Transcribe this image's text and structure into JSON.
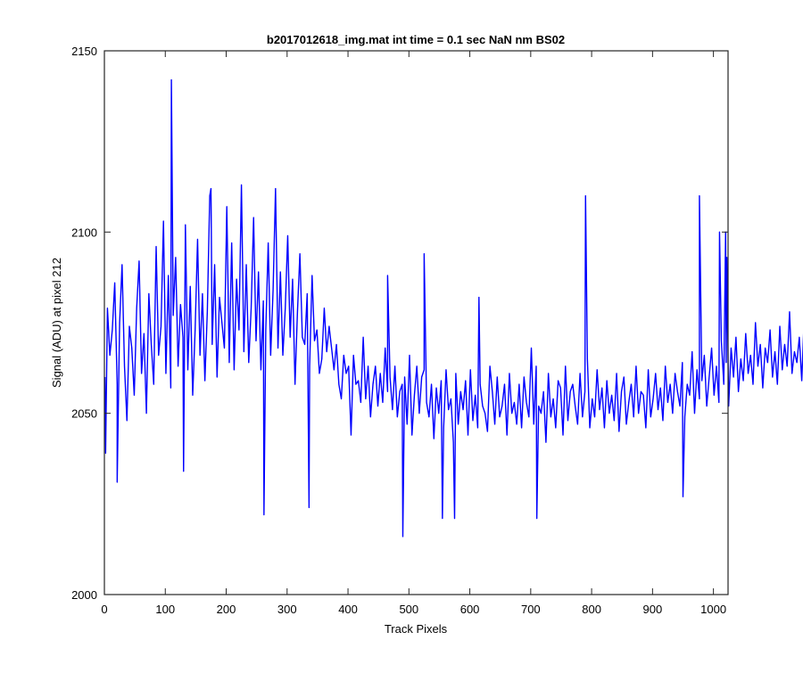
{
  "chart_data": {
    "type": "line",
    "title": "b2017012618_img.mat int time = 0.1 sec  NaN nm BS02",
    "xlabel": "Track Pixels",
    "ylabel": "Signal (ADU) at pixel 212",
    "xlim": [
      0,
      1024
    ],
    "ylim": [
      2000,
      2150
    ],
    "xticks": [
      0,
      100,
      200,
      300,
      400,
      500,
      600,
      700,
      800,
      900,
      1000
    ],
    "yticks": [
      2000,
      2050,
      2100,
      2150
    ],
    "xtick_labels": [
      "0",
      "100",
      "200",
      "300",
      "400",
      "500",
      "600",
      "700",
      "800",
      "900",
      "1000"
    ],
    "ytick_labels": [
      "2000",
      "2050",
      "2100",
      "2150"
    ],
    "grid": false,
    "box": true,
    "series_color": "#0000ff",
    "series": [
      {
        "x_start": 1,
        "x_step": 4,
        "values": [
          2060,
          2079,
          2066,
          2073,
          2086,
          2058,
          2075,
          2091,
          2063,
          2048,
          2074,
          2068,
          2055,
          2079,
          2092,
          2061,
          2072,
          2050,
          2083,
          2069,
          2058,
          2096,
          2066,
          2074,
          2103,
          2061,
          2088,
          2057,
          2077,
          2093,
          2063,
          2080,
          2071,
          2102,
          2062,
          2085,
          2055,
          2073,
          2098,
          2066,
          2083,
          2059,
          2078,
          2110,
          2069,
          2091,
          2060,
          2082,
          2075,
          2068,
          2107,
          2064,
          2097,
          2062,
          2087,
          2073,
          2113,
          2067,
          2091,
          2064,
          2079,
          2104,
          2070,
          2089,
          2062,
          2081,
          2073,
          2097,
          2066,
          2084,
          2112,
          2068,
          2089,
          2066,
          2079,
          2099,
          2071,
          2087,
          2058,
          2078,
          2094,
          2071,
          2069,
          2083,
          2063,
          2088,
          2070,
          2073,
          2061,
          2065,
          2079,
          2067,
          2074,
          2068,
          2062,
          2069,
          2058,
          2054,
          2066,
          2061,
          2063,
          2044,
          2066,
          2058,
          2059,
          2053,
          2071,
          2054,
          2063,
          2049,
          2058,
          2063,
          2052,
          2061,
          2053,
          2068,
          2056,
          2060,
          2051,
          2063,
          2049,
          2056,
          2058,
          2060,
          2047,
          2066,
          2044,
          2055,
          2063,
          2050,
          2060,
          2062,
          2053,
          2049,
          2058,
          2043,
          2057,
          2050,
          2059,
          2046,
          2062,
          2051,
          2054,
          2042,
          2061,
          2047,
          2056,
          2051,
          2059,
          2044,
          2062,
          2048,
          2055,
          2046,
          2058,
          2052,
          2050,
          2045,
          2063,
          2056,
          2047,
          2060,
          2049,
          2052,
          2058,
          2044,
          2061,
          2050,
          2053,
          2047,
          2058,
          2046,
          2060,
          2053,
          2049,
          2068,
          2047,
          2063,
          2052,
          2050,
          2056,
          2042,
          2061,
          2049,
          2054,
          2046,
          2059,
          2057,
          2044,
          2063,
          2048,
          2056,
          2058,
          2052,
          2047,
          2061,
          2049,
          2056,
          2065,
          2046,
          2054,
          2049,
          2062,
          2051,
          2057,
          2046,
          2059,
          2050,
          2055,
          2048,
          2061,
          2045,
          2056,
          2060,
          2047,
          2053,
          2058,
          2049,
          2063,
          2050,
          2056,
          2055,
          2046,
          2062,
          2049,
          2054,
          2061,
          2051,
          2057,
          2048,
          2063,
          2053,
          2058,
          2050,
          2061,
          2056,
          2052,
          2064,
          2049,
          2058,
          2055,
          2067,
          2050,
          2062,
          2054,
          2059,
          2066,
          2052,
          2060,
          2068,
          2055,
          2063,
          2053,
          2070,
          2058,
          2064,
          2052,
          2068,
          2060,
          2071,
          2056,
          2065,
          2059,
          2072,
          2061,
          2066,
          2058,
          2075,
          2063,
          2069,
          2057,
          2068,
          2064,
          2073,
          2060,
          2067,
          2058,
          2074,
          2062,
          2069,
          2063,
          2078,
          2061,
          2067,
          2064,
          2071,
          2059,
          2076,
          2065,
          2068,
          2062
        ]
      }
    ],
    "spikes": [
      {
        "x": 2,
        "y": 2039
      },
      {
        "x": 21,
        "y": 2031
      },
      {
        "x": 110,
        "y": 2142
      },
      {
        "x": 130,
        "y": 2034
      },
      {
        "x": 175,
        "y": 2112
      },
      {
        "x": 262,
        "y": 2022
      },
      {
        "x": 336,
        "y": 2024
      },
      {
        "x": 465,
        "y": 2088
      },
      {
        "x": 490,
        "y": 2016
      },
      {
        "x": 525,
        "y": 2094
      },
      {
        "x": 555,
        "y": 2021
      },
      {
        "x": 575,
        "y": 2021
      },
      {
        "x": 615,
        "y": 2082
      },
      {
        "x": 710,
        "y": 2021
      },
      {
        "x": 790,
        "y": 2110
      },
      {
        "x": 950,
        "y": 2027
      },
      {
        "x": 977,
        "y": 2110
      },
      {
        "x": 1010,
        "y": 2100
      },
      {
        "x": 1020,
        "y": 2100
      },
      {
        "x": 1022,
        "y": 2093
      }
    ]
  }
}
